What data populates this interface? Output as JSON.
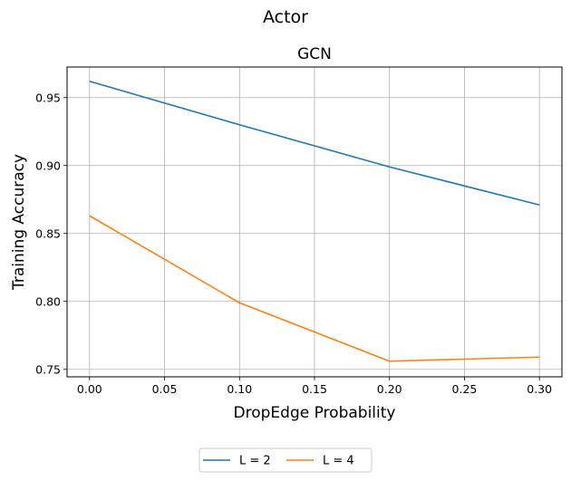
{
  "chart_data": {
    "type": "line",
    "suptitle": "Actor",
    "title": "GCN",
    "xlabel": "DropEdge Probability",
    "ylabel": "Training Accuracy",
    "x": [
      0.0,
      0.1,
      0.2,
      0.3
    ],
    "xticks": [
      "0.00",
      "0.05",
      "0.10",
      "0.15",
      "0.20",
      "0.25",
      "0.30"
    ],
    "yticks": [
      "0.75",
      "0.80",
      "0.85",
      "0.90",
      "0.95"
    ],
    "xlim": [
      -0.015,
      0.315
    ],
    "ylim": [
      0.7445,
      0.9725
    ],
    "grid": true,
    "legend_position": "bottom-center",
    "series": [
      {
        "name": "L = 2",
        "color": "#1f77b4",
        "values": [
          0.962,
          0.93,
          0.899,
          0.871
        ]
      },
      {
        "name": "L = 4",
        "color": "#ff7f0e",
        "values": [
          0.863,
          0.799,
          0.756,
          0.759
        ]
      }
    ]
  }
}
